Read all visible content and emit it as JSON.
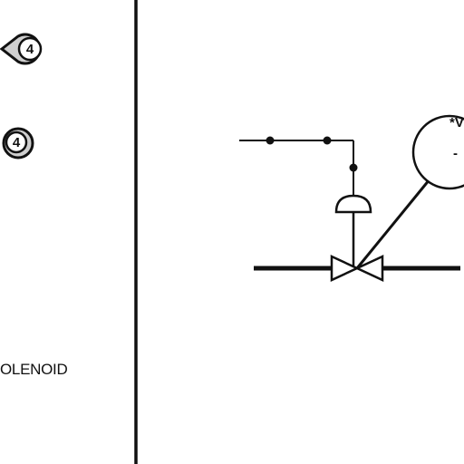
{
  "legend": {
    "tag_number_1": "4",
    "tag_number_2": "4",
    "solenoid_label": "OLENOID"
  },
  "instrument": {
    "label_partial": "*V",
    "dash": "-"
  },
  "colors": {
    "line": "#111111",
    "background": "#ffffff"
  }
}
